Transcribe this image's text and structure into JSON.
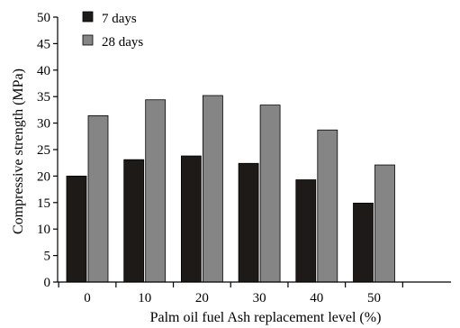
{
  "chart_data": {
    "type": "bar",
    "categories": [
      "0",
      "10",
      "20",
      "30",
      "40",
      "50"
    ],
    "series": [
      {
        "name": "7 days",
        "values": [
          20.0,
          23.1,
          23.8,
          22.4,
          19.3,
          14.9
        ],
        "color": "#1e1a18"
      },
      {
        "name": "28 days",
        "values": [
          31.4,
          34.4,
          35.2,
          33.4,
          28.7,
          22.1
        ],
        "color": "#858585"
      }
    ],
    "xlabel": "Palm oil fuel Ash replacement level (%)",
    "ylabel": "Compressive strength (MPa)",
    "ylim": [
      0,
      50
    ],
    "yticks": [
      "0",
      "5",
      "10",
      "15",
      "20",
      "25",
      "30",
      "35",
      "40",
      "45",
      "50"
    ],
    "grid": false,
    "legend_position": "top-left"
  }
}
